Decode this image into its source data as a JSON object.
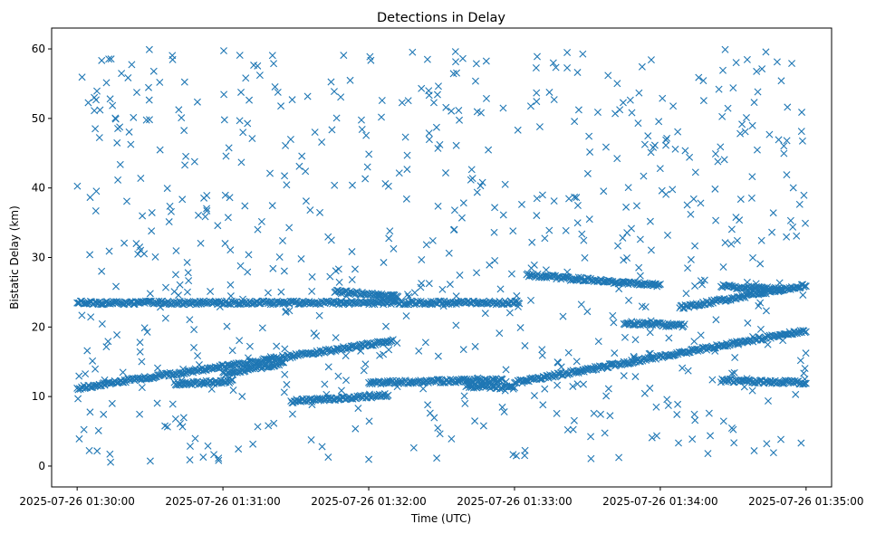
{
  "chart_data": {
    "type": "scatter",
    "title": "Detections in Delay",
    "xlabel": "Time (UTC)",
    "ylabel": "Bistatic Delay (km)",
    "marker": "x",
    "color": "#1f77b4",
    "x_unit": "seconds since 2025-07-26 01:30:00 UTC",
    "xlim": [
      -10.5,
      310.5
    ],
    "ylim": [
      -3,
      63
    ],
    "x_ticks": [
      {
        "value": 0,
        "label": "2025-07-26 01:30:00"
      },
      {
        "value": 60,
        "label": "2025-07-26 01:31:00"
      },
      {
        "value": 120,
        "label": "2025-07-26 01:32:00"
      },
      {
        "value": 180,
        "label": "2025-07-26 01:33:00"
      },
      {
        "value": 240,
        "label": "2025-07-26 01:34:00"
      },
      {
        "value": 300,
        "label": "2025-07-26 01:35:00"
      }
    ],
    "y_ticks": [
      {
        "value": 0,
        "label": "0"
      },
      {
        "value": 10,
        "label": "10"
      },
      {
        "value": 20,
        "label": "20"
      },
      {
        "value": 30,
        "label": "30"
      },
      {
        "value": 40,
        "label": "40"
      },
      {
        "value": 50,
        "label": "50"
      },
      {
        "value": 60,
        "label": "60"
      }
    ],
    "tracks": [
      {
        "name": "constant-delay track",
        "x_range": [
          0,
          182
        ],
        "delay_start": 23.5,
        "delay_end": 23.5
      },
      {
        "name": "rising track 1",
        "x_range": [
          0,
          130
        ],
        "delay_start": 11.2,
        "delay_end": 18.0
      },
      {
        "name": "rising track 2",
        "x_range": [
          40,
          64
        ],
        "delay_start": 11.8,
        "delay_end": 12.2
      },
      {
        "name": "rising track 3",
        "x_range": [
          60,
          85
        ],
        "delay_start": 13.3,
        "delay_end": 14.8
      },
      {
        "name": "segment near 25 km",
        "x_range": [
          106,
          125
        ],
        "delay_start": 25.1,
        "delay_end": 24.6
      },
      {
        "name": "segment near 24.5 km",
        "x_range": [
          124,
          132
        ],
        "delay_start": 24.6,
        "delay_end": 24.4
      },
      {
        "name": "flat segment near 12 km",
        "x_range": [
          120,
          175
        ],
        "delay_start": 12.0,
        "delay_end": 12.4
      },
      {
        "name": "segment near 10 km",
        "x_range": [
          88,
          128
        ],
        "delay_start": 9.3,
        "delay_end": 10.2
      },
      {
        "name": "segment near 11.5 km",
        "x_range": [
          160,
          180
        ],
        "delay_start": 11.5,
        "delay_end": 11.3
      },
      {
        "name": "rising track 4",
        "x_range": [
          180,
          300
        ],
        "delay_start": 12.0,
        "delay_end": 19.5
      },
      {
        "name": "falling track near 27 km",
        "x_range": [
          185,
          240
        ],
        "delay_start": 27.5,
        "delay_end": 26.0
      },
      {
        "name": "rising track 5",
        "x_range": [
          248,
          300
        ],
        "delay_start": 22.8,
        "delay_end": 26.0
      },
      {
        "name": "segment near 20.5 km",
        "x_range": [
          225,
          250
        ],
        "delay_start": 20.6,
        "delay_end": 20.2
      },
      {
        "name": "segment near 25.5 km",
        "x_range": [
          265,
          290
        ],
        "delay_start": 25.9,
        "delay_end": 25.4
      },
      {
        "name": "segment near 12 km",
        "x_range": [
          265,
          300
        ],
        "delay_start": 12.3,
        "delay_end": 12.0
      }
    ],
    "random_clutter": {
      "count": 700,
      "x_range": [
        0,
        300
      ],
      "delay_range": [
        0.5,
        60
      ],
      "note": "uniformly scattered false detections across the plot area"
    }
  }
}
